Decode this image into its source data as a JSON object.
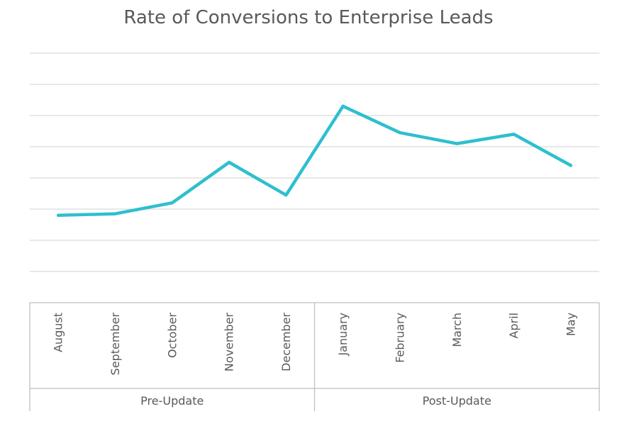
{
  "chart_data": {
    "type": "line",
    "title": "Rate of Conversions to Enterprise Leads",
    "xlabel": "",
    "ylabel": "",
    "categories": [
      "August",
      "September",
      "October",
      "November",
      "December",
      "January",
      "February",
      "March",
      "April",
      "May"
    ],
    "groups": [
      {
        "label": "Pre-Update",
        "categories": [
          "August",
          "September",
          "October",
          "November",
          "December"
        ]
      },
      {
        "label": "Post-Update",
        "categories": [
          "January",
          "February",
          "March",
          "April",
          "May"
        ]
      }
    ],
    "series": [
      {
        "values": [
          2.8,
          2.85,
          3.2,
          4.5,
          3.45,
          6.3,
          5.45,
          5.1,
          5.4,
          4.4
        ],
        "color": "#2ebfcf"
      }
    ],
    "ylim": [
      0,
      8
    ],
    "grid": true,
    "y_tick_labels_visible": false,
    "legend": "none"
  }
}
